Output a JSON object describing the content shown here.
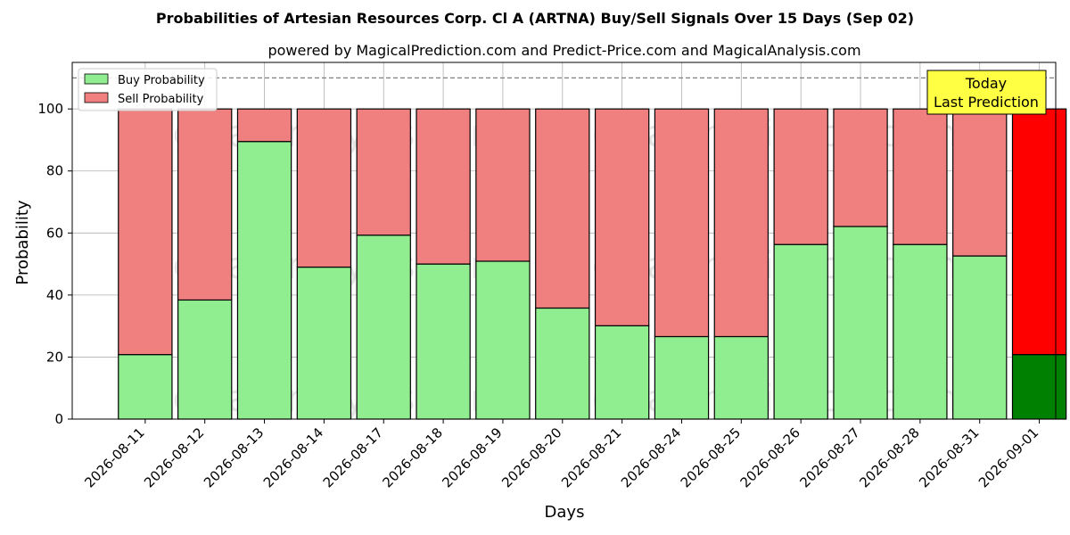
{
  "chart_data": {
    "type": "bar",
    "stacked": true,
    "title": "Probabilities of Artesian Resources Corp. Cl A (ARTNA) Buy/Sell Signals Over 15 Days (Sep 02)",
    "subtitle": "powered by MagicalPrediction.com and Predict-Price.com and MagicalAnalysis.com",
    "xlabel": "Days",
    "ylabel": "Probability",
    "ylim": [
      0,
      115
    ],
    "yticks": [
      0,
      20,
      40,
      60,
      80,
      100
    ],
    "grid": true,
    "reference_line": 110,
    "legend_position": "top-left",
    "categories": [
      "2026-08-11",
      "2026-08-12",
      "2026-08-13",
      "2026-08-14",
      "2026-08-17",
      "2026-08-18",
      "2026-08-19",
      "2026-08-20",
      "2026-08-21",
      "2026-08-24",
      "2026-08-25",
      "2026-08-26",
      "2026-08-27",
      "2026-08-28",
      "2026-08-31",
      "2026-09-01"
    ],
    "series": [
      {
        "name": "Buy Probability",
        "color": "#90ee90",
        "values": [
          20.8,
          38.4,
          89.5,
          49.0,
          59.3,
          50.0,
          50.9,
          35.8,
          30.1,
          26.6,
          26.6,
          56.3,
          62.1,
          56.3,
          52.6,
          20.8
        ]
      },
      {
        "name": "Sell Probability",
        "color": "#f08080",
        "values": [
          79.2,
          61.6,
          10.5,
          51.0,
          40.7,
          50.0,
          49.1,
          64.2,
          69.9,
          73.4,
          73.4,
          43.7,
          37.9,
          43.7,
          47.4,
          79.2
        ]
      }
    ],
    "highlight": {
      "index": 15,
      "buy_color": "#008000",
      "sell_color": "#ff0000"
    },
    "annotation": {
      "lines": [
        "Today",
        "Last Prediction"
      ],
      "background": "#ffff44"
    },
    "watermarks": [
      "MagicalAnalysis.com",
      "MagicalPrediction.com"
    ]
  }
}
